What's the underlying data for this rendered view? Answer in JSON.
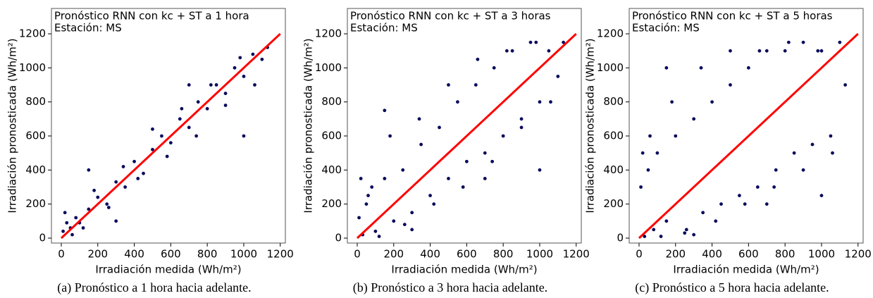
{
  "chart_data": [
    {
      "type": "scatter",
      "title": "Pronóstico RNN con kc + ST a 1 hora",
      "subtitle": "Estación: MS",
      "xlabel": "Irradiación medida (Wh/m²)",
      "ylabel": "Irradiación pronosticada (Wh/m²)",
      "caption": "(a) Pronóstico a 1 hora hacia adelante.",
      "x": [
        10,
        30,
        50,
        80,
        100,
        150,
        200,
        250,
        300,
        350,
        400,
        450,
        500,
        550,
        600,
        650,
        700,
        750,
        800,
        850,
        900,
        950,
        1000,
        1050,
        1100,
        1130,
        20,
        60,
        120,
        180,
        260,
        340,
        420,
        500,
        580,
        660,
        740,
        820,
        900,
        980,
        1060,
        150,
        300,
        700,
        1000
      ],
      "series": [
        {
          "color": "#0b0b5c",
          "values": [
            40,
            90,
            60,
            120,
            90,
            170,
            240,
            200,
            330,
            300,
            450,
            380,
            520,
            600,
            560,
            700,
            650,
            800,
            760,
            900,
            850,
            1000,
            950,
            1080,
            1050,
            1120,
            150,
            20,
            60,
            280,
            180,
            420,
            350,
            640,
            480,
            760,
            600,
            900,
            780,
            1060,
            900,
            400,
            100,
            900,
            600
          ]
        }
      ],
      "reference_line": {
        "x": [
          0,
          1200
        ],
        "values": [
          0,
          1200
        ],
        "color": "#ff0000"
      },
      "xlim": [
        -54,
        1228
      ],
      "ylim": [
        -29,
        1349
      ],
      "xticks": [
        0,
        200,
        400,
        600,
        800,
        1000,
        1200
      ],
      "yticks": [
        0,
        200,
        400,
        600,
        800,
        1000,
        1200
      ]
    },
    {
      "type": "scatter",
      "title": "Pronóstico RNN con kc + ST a 3 horas",
      "subtitle": "Estación: MS",
      "xlabel": "Irradiación medida (Wh/m²)",
      "ylabel": "Irradiación pronosticada (Wh/m²)",
      "caption": "(b) Pronóstico a 3 hora hacia adelante.",
      "x": [
        10,
        30,
        50,
        80,
        100,
        150,
        200,
        250,
        300,
        350,
        400,
        450,
        500,
        550,
        600,
        650,
        700,
        750,
        800,
        850,
        900,
        950,
        1000,
        1050,
        1100,
        1130,
        20,
        60,
        120,
        180,
        260,
        340,
        420,
        500,
        580,
        660,
        740,
        820,
        900,
        980,
        1060,
        150,
        300,
        700,
        1000
      ],
      "series": [
        {
          "color": "#0b0b5c",
          "values": [
            120,
            20,
            200,
            300,
            40,
            350,
            100,
            400,
            150,
            550,
            250,
            650,
            350,
            800,
            450,
            900,
            500,
            1000,
            600,
            1100,
            700,
            1150,
            800,
            1100,
            950,
            1150,
            350,
            250,
            10,
            600,
            80,
            700,
            200,
            900,
            300,
            1050,
            450,
            1100,
            650,
            1150,
            800,
            750,
            50,
            350,
            400
          ]
        }
      ],
      "reference_line": {
        "x": [
          0,
          1200
        ],
        "values": [
          0,
          1200
        ],
        "color": "#ff0000"
      },
      "xlim": [
        -54,
        1228
      ],
      "ylim": [
        -29,
        1349
      ],
      "xticks": [
        0,
        200,
        400,
        600,
        800,
        1000,
        1200
      ],
      "yticks": [
        0,
        200,
        400,
        600,
        800,
        1000,
        1200
      ]
    },
    {
      "type": "scatter",
      "title": "Pronóstico RNN con kc + ST a 5 horas",
      "subtitle": "Estación: MS",
      "xlabel": "Irradiación medida (Wh/m²)",
      "ylabel": "Irradiación pronosticada (Wh/m²)",
      "caption": "(c) Pronóstico a 5 hora hacia adelante.",
      "x": [
        10,
        30,
        50,
        80,
        100,
        150,
        200,
        250,
        300,
        350,
        400,
        450,
        500,
        550,
        600,
        650,
        700,
        750,
        800,
        850,
        900,
        950,
        1000,
        1050,
        1100,
        1130,
        20,
        60,
        120,
        180,
        260,
        340,
        420,
        500,
        580,
        660,
        740,
        820,
        900,
        980,
        1060,
        150,
        300,
        700,
        1000
      ],
      "series": [
        {
          "color": "#0b0b5c",
          "values": [
            300,
            10,
            400,
            50,
            500,
            100,
            600,
            30,
            700,
            150,
            800,
            200,
            900,
            250,
            1000,
            300,
            1100,
            400,
            1100,
            500,
            1150,
            550,
            1100,
            600,
            1150,
            900,
            500,
            600,
            10,
            800,
            50,
            1000,
            100,
            1100,
            200,
            1100,
            300,
            1150,
            400,
            1100,
            500,
            1000,
            20,
            200,
            250
          ]
        }
      ],
      "reference_line": {
        "x": [
          0,
          1200
        ],
        "values": [
          0,
          1200
        ],
        "color": "#ff0000"
      },
      "xlim": [
        -54,
        1228
      ],
      "ylim": [
        -29,
        1349
      ],
      "xticks": [
        0,
        200,
        400,
        600,
        800,
        1000,
        1200
      ],
      "yticks": [
        0,
        200,
        400,
        600,
        800,
        1000,
        1200
      ]
    }
  ]
}
